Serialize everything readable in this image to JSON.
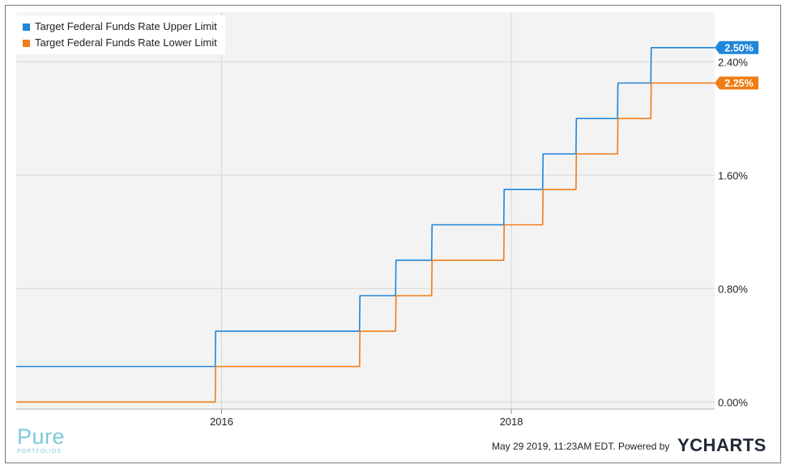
{
  "chart_data": {
    "type": "line",
    "series": [
      {
        "name": "Target Federal Funds Rate Upper Limit",
        "color": "#1f86d9",
        "end_label": "2.50%",
        "points": [
          [
            "2014-08-01",
            0.25
          ],
          [
            "2015-12-16",
            0.25
          ],
          [
            "2015-12-17",
            0.5
          ],
          [
            "2016-12-14",
            0.5
          ],
          [
            "2016-12-15",
            0.75
          ],
          [
            "2017-03-15",
            0.75
          ],
          [
            "2017-03-16",
            1.0
          ],
          [
            "2017-06-14",
            1.0
          ],
          [
            "2017-06-15",
            1.25
          ],
          [
            "2017-12-13",
            1.25
          ],
          [
            "2017-12-14",
            1.5
          ],
          [
            "2018-03-21",
            1.5
          ],
          [
            "2018-03-22",
            1.75
          ],
          [
            "2018-06-13",
            1.75
          ],
          [
            "2018-06-14",
            2.0
          ],
          [
            "2018-09-26",
            2.0
          ],
          [
            "2018-09-27",
            2.25
          ],
          [
            "2018-12-19",
            2.25
          ],
          [
            "2018-12-20",
            2.5
          ],
          [
            "2019-05-29",
            2.5
          ]
        ]
      },
      {
        "name": "Target Federal Funds Rate Lower Limit",
        "color": "#f07d16",
        "end_label": "2.25%",
        "points": [
          [
            "2014-08-01",
            0.0
          ],
          [
            "2015-12-16",
            0.0
          ],
          [
            "2015-12-17",
            0.25
          ],
          [
            "2016-12-14",
            0.25
          ],
          [
            "2016-12-15",
            0.5
          ],
          [
            "2017-03-15",
            0.5
          ],
          [
            "2017-03-16",
            0.75
          ],
          [
            "2017-06-14",
            0.75
          ],
          [
            "2017-06-15",
            1.0
          ],
          [
            "2017-12-13",
            1.0
          ],
          [
            "2017-12-14",
            1.25
          ],
          [
            "2018-03-21",
            1.25
          ],
          [
            "2018-03-22",
            1.5
          ],
          [
            "2018-06-13",
            1.5
          ],
          [
            "2018-06-14",
            1.75
          ],
          [
            "2018-09-26",
            1.75
          ],
          [
            "2018-09-27",
            2.0
          ],
          [
            "2018-12-19",
            2.0
          ],
          [
            "2018-12-20",
            2.25
          ],
          [
            "2019-05-29",
            2.25
          ]
        ]
      }
    ],
    "x_range": [
      "2014-08-01",
      "2019-05-29"
    ],
    "x_ticks": [
      {
        "date": "2016-01-01",
        "label": "2016"
      },
      {
        "date": "2018-01-01",
        "label": "2018"
      }
    ],
    "y_range": [
      -0.05,
      2.75
    ],
    "y_ticks": [
      {
        "value": 0.0,
        "label": "0.00%"
      },
      {
        "value": 0.8,
        "label": "0.80%"
      },
      {
        "value": 1.6,
        "label": "1.60%"
      },
      {
        "value": 2.4,
        "label": "2.40%"
      }
    ],
    "grid": true,
    "legend_position": "top-left"
  },
  "footer": {
    "timestamp": "May 29 2019, 11:23AM EDT.",
    "powered_by": "Powered by",
    "brand": "YCHARTS"
  },
  "logo": {
    "main": "Pure",
    "sub": "PORTFOLIOS",
    "color": "#7fc8dc"
  }
}
